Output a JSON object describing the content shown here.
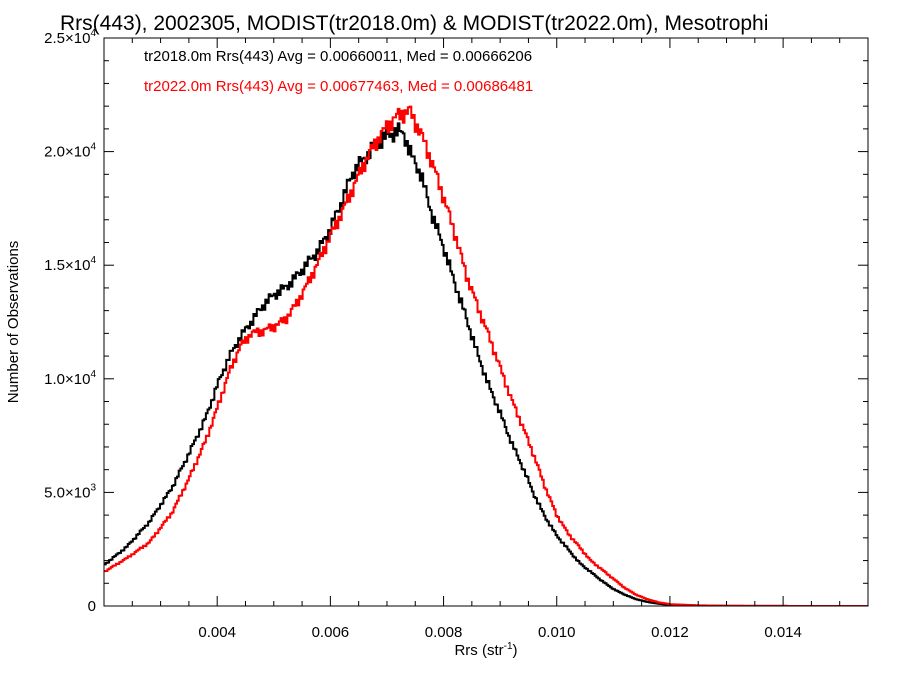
{
  "chart_data": {
    "type": "line",
    "title": "Rrs(443), 2002305, MODIST(tr2018.0m) & MODIST(tr2022.0m), Mesotrophi",
    "xlabel": {
      "base": "Rrs (str",
      "sup": "-1",
      "close": ")"
    },
    "ylabel": "Number of Observations",
    "xlim": [
      0.002,
      0.0155
    ],
    "ylim": [
      0,
      25000
    ],
    "grid": false,
    "legend_position": "top-left",
    "x_ticks": [
      {
        "value": 0.004,
        "label": "0.004"
      },
      {
        "value": 0.006,
        "label": "0.006"
      },
      {
        "value": 0.008,
        "label": "0.008"
      },
      {
        "value": 0.01,
        "label": "0.010"
      },
      {
        "value": 0.012,
        "label": "0.012"
      },
      {
        "value": 0.014,
        "label": "0.014"
      }
    ],
    "y_ticks": [
      {
        "value": 0,
        "mant": "0",
        "exp": ""
      },
      {
        "value": 5000,
        "mant": "5.0×10",
        "exp": "3"
      },
      {
        "value": 10000,
        "mant": "1.0×10",
        "exp": "4"
      },
      {
        "value": 15000,
        "mant": "1.5×10",
        "exp": "4"
      },
      {
        "value": 20000,
        "mant": "2.0×10",
        "exp": "4"
      },
      {
        "value": 25000,
        "mant": "2.5×10",
        "exp": "4"
      }
    ],
    "series": [
      {
        "legend": "tr2018.0m Rrs(443) Avg = 0.00660011, Med = 0.00666206",
        "color": "#000000",
        "points": [
          [
            0.002,
            1800
          ],
          [
            0.0024,
            2600
          ],
          [
            0.0028,
            3700
          ],
          [
            0.0032,
            5200
          ],
          [
            0.0035,
            6700
          ],
          [
            0.0038,
            8300
          ],
          [
            0.004,
            9700
          ],
          [
            0.0042,
            10900
          ],
          [
            0.0044,
            11800
          ],
          [
            0.0046,
            12500
          ],
          [
            0.0048,
            13200
          ],
          [
            0.005,
            13700
          ],
          [
            0.0052,
            14000
          ],
          [
            0.0054,
            14500
          ],
          [
            0.0056,
            15100
          ],
          [
            0.0058,
            15700
          ],
          [
            0.006,
            16600
          ],
          [
            0.0062,
            17800
          ],
          [
            0.0064,
            19100
          ],
          [
            0.0066,
            19700
          ],
          [
            0.0068,
            20300
          ],
          [
            0.007,
            20700
          ],
          [
            0.0072,
            20900
          ],
          [
            0.0073,
            20800
          ],
          [
            0.0074,
            20000
          ],
          [
            0.0076,
            19000
          ],
          [
            0.0078,
            17200
          ],
          [
            0.008,
            15800
          ],
          [
            0.0082,
            14200
          ],
          [
            0.0084,
            12700
          ],
          [
            0.0086,
            11100
          ],
          [
            0.0088,
            9700
          ],
          [
            0.009,
            8500
          ],
          [
            0.0092,
            7200
          ],
          [
            0.0094,
            6100
          ],
          [
            0.0096,
            4900
          ],
          [
            0.0098,
            3900
          ],
          [
            0.01,
            3100
          ],
          [
            0.0102,
            2500
          ],
          [
            0.0104,
            1900
          ],
          [
            0.0106,
            1500
          ],
          [
            0.0108,
            1100
          ],
          [
            0.011,
            750
          ],
          [
            0.0112,
            500
          ],
          [
            0.0114,
            300
          ],
          [
            0.0116,
            180
          ],
          [
            0.0118,
            100
          ],
          [
            0.012,
            50
          ],
          [
            0.0125,
            20
          ],
          [
            0.013,
            8
          ],
          [
            0.014,
            3
          ],
          [
            0.0155,
            0
          ]
        ]
      },
      {
        "legend": "tr2022.0m Rrs(443) Avg = 0.00677463, Med = 0.00686481",
        "color": "#ff0000",
        "points": [
          [
            0.002,
            1500
          ],
          [
            0.0024,
            2100
          ],
          [
            0.0028,
            2800
          ],
          [
            0.0032,
            4100
          ],
          [
            0.0035,
            5600
          ],
          [
            0.0038,
            7300
          ],
          [
            0.004,
            8700
          ],
          [
            0.0042,
            10200
          ],
          [
            0.0044,
            11400
          ],
          [
            0.0046,
            12000
          ],
          [
            0.0048,
            12100
          ],
          [
            0.005,
            12300
          ],
          [
            0.0052,
            12600
          ],
          [
            0.0054,
            13300
          ],
          [
            0.0056,
            14200
          ],
          [
            0.0058,
            15200
          ],
          [
            0.006,
            16300
          ],
          [
            0.0062,
            17300
          ],
          [
            0.0064,
            18400
          ],
          [
            0.0066,
            19500
          ],
          [
            0.0068,
            20400
          ],
          [
            0.007,
            21100
          ],
          [
            0.0072,
            21600
          ],
          [
            0.0074,
            21800
          ],
          [
            0.0076,
            20800
          ],
          [
            0.0078,
            19500
          ],
          [
            0.008,
            18000
          ],
          [
            0.0082,
            16400
          ],
          [
            0.0084,
            14600
          ],
          [
            0.0086,
            13200
          ],
          [
            0.0088,
            11900
          ],
          [
            0.009,
            10500
          ],
          [
            0.0092,
            9100
          ],
          [
            0.0094,
            7900
          ],
          [
            0.0096,
            6600
          ],
          [
            0.0098,
            5200
          ],
          [
            0.01,
            4000
          ],
          [
            0.0102,
            3200
          ],
          [
            0.0104,
            2600
          ],
          [
            0.0106,
            2000
          ],
          [
            0.0108,
            1600
          ],
          [
            0.011,
            1200
          ],
          [
            0.0112,
            800
          ],
          [
            0.0114,
            500
          ],
          [
            0.0116,
            300
          ],
          [
            0.0118,
            160
          ],
          [
            0.012,
            80
          ],
          [
            0.0125,
            30
          ],
          [
            0.013,
            10
          ],
          [
            0.014,
            3
          ],
          [
            0.0155,
            0
          ]
        ]
      }
    ]
  }
}
